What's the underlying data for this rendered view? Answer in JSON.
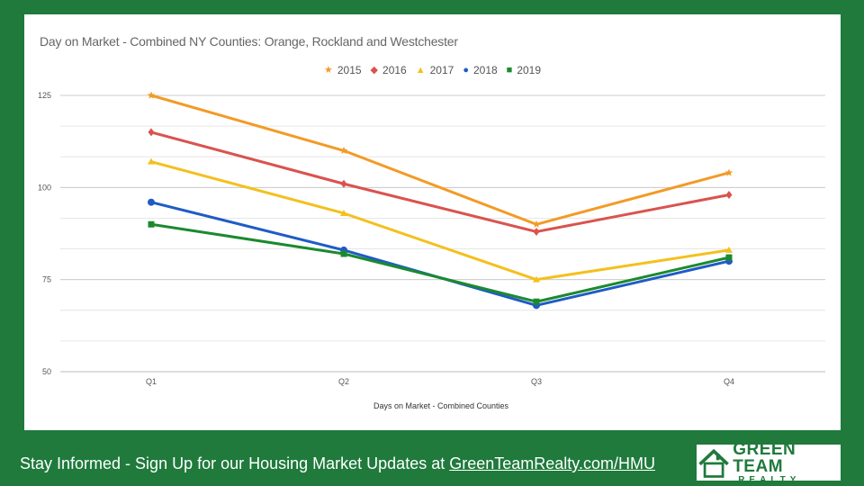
{
  "chart_data": {
    "type": "line",
    "title": "Day on Market - Combined NY Counties: Orange, Rockland and Westchester",
    "xlabel": "Days on Market - Combined Counties",
    "ylabel": "",
    "categories": [
      "Q1",
      "Q2",
      "Q3",
      "Q4"
    ],
    "ylim": [
      50,
      125
    ],
    "yticks": [
      50,
      75,
      100,
      125
    ],
    "grid": true,
    "legend_position": "top",
    "series": [
      {
        "name": "2015",
        "values": [
          125,
          110,
          90,
          104
        ],
        "color": "#f29b26",
        "marker": "star",
        "glyph": "★"
      },
      {
        "name": "2016",
        "values": [
          115,
          101,
          88,
          98
        ],
        "color": "#d9534f",
        "marker": "diamond",
        "glyph": "◆"
      },
      {
        "name": "2017",
        "values": [
          107,
          93,
          75,
          83
        ],
        "color": "#f4c01e",
        "marker": "triangle",
        "glyph": "▲"
      },
      {
        "name": "2018",
        "values": [
          96,
          83,
          68,
          80
        ],
        "color": "#1f5bc6",
        "marker": "circle",
        "glyph": "●"
      },
      {
        "name": "2019",
        "values": [
          90,
          82,
          69,
          81
        ],
        "color": "#1a8a2e",
        "marker": "square",
        "glyph": "■"
      }
    ]
  },
  "footer": {
    "text": "Stay Informed - Sign Up for our Housing Market Updates at ",
    "link": "GreenTeamRealty.com/HMU"
  },
  "logo": {
    "line1": "GREEN TEAM",
    "line2": "REALTY"
  }
}
